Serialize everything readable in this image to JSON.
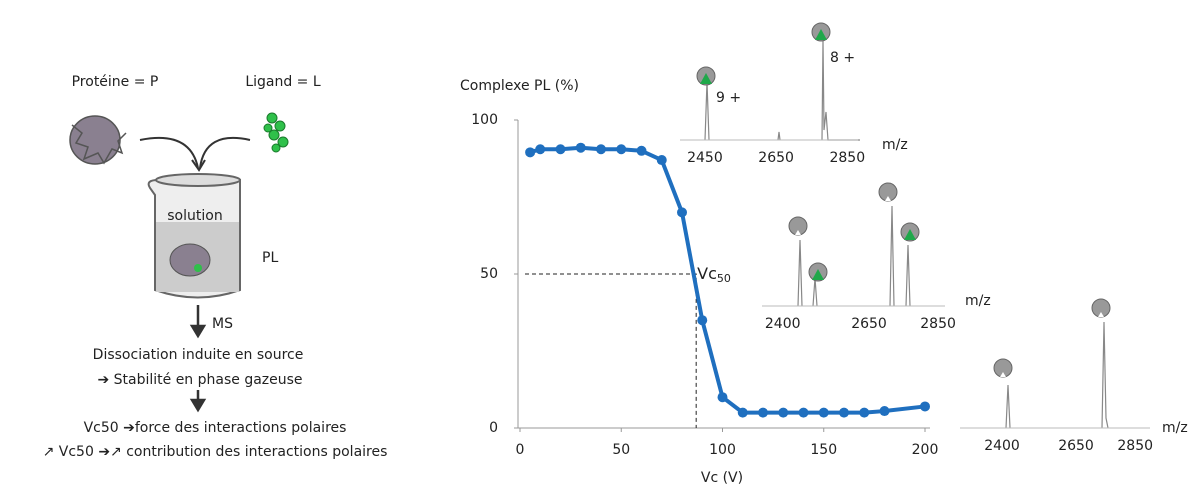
{
  "chart_data": {
    "type": "line",
    "xlabel": "Vc (V)",
    "ylabel": "Complexe PL (%)",
    "x": [
      5,
      10,
      20,
      30,
      40,
      50,
      60,
      70,
      80,
      90,
      100,
      110,
      120,
      130,
      140,
      150,
      160,
      170,
      180,
      200
    ],
    "series": [
      {
        "color": "#1f6fbf",
        "values": [
          89.5,
          90.5,
          90.5,
          91,
          90.5,
          90.5,
          90,
          87,
          70,
          35,
          10,
          5,
          5,
          5,
          5,
          5,
          5,
          5,
          5.5,
          7
        ]
      }
    ],
    "xlim": [
      0,
      200
    ],
    "ylim": [
      0,
      100
    ],
    "xticks": [
      0,
      50,
      100,
      150,
      200
    ],
    "yticks": [
      0,
      50,
      100
    ],
    "annotation": {
      "label": "Vc",
      "subscript": "50",
      "x": 87,
      "y": 50
    }
  },
  "insets": [
    {
      "xlim": [
        2380,
        2880
      ],
      "xticks": [
        2450,
        2650,
        2850
      ],
      "xlabel": "m/z",
      "peak_labels": [
        "9 +",
        "8 +"
      ]
    },
    {
      "xlim": [
        2340,
        2870
      ],
      "xticks": [
        2400,
        2650,
        2850
      ],
      "xlabel": "m/z"
    },
    {
      "xlim": [
        2258,
        2900
      ],
      "xticks": [
        2400,
        2650,
        2850
      ],
      "xlabel": "m/z"
    }
  ],
  "diagram": {
    "protein": "Protéine = P",
    "ligand": "Ligand = L",
    "solution": "solution",
    "complex": "PL",
    "method": "MS",
    "lines": [
      "Dissociation induite en source",
      "➔ Stabilité en phase gazeuse",
      "Vc50 ➔force des interactions polaires",
      "↗ Vc50 ➔↗ contribution des interactions polaires"
    ]
  }
}
